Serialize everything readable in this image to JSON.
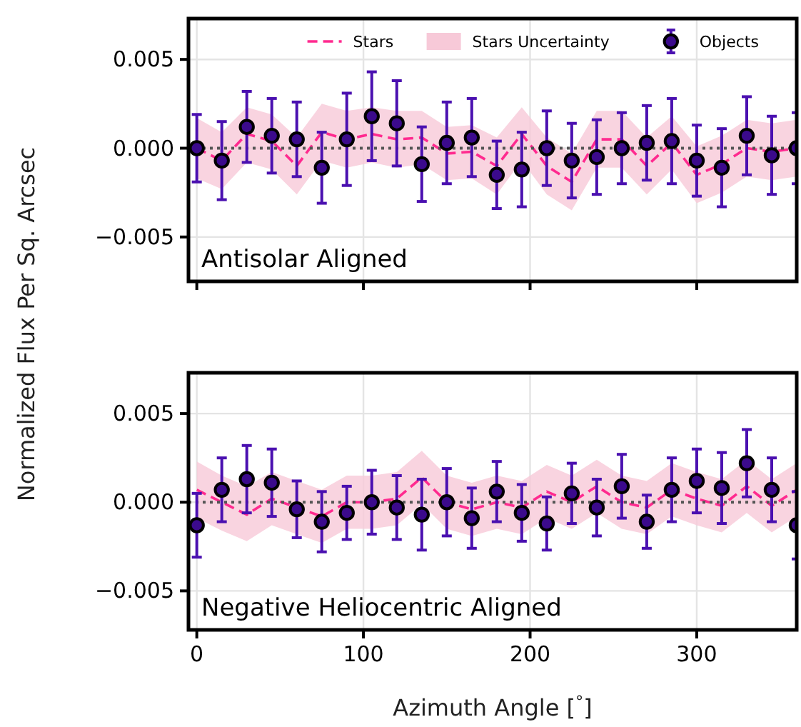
{
  "chart_data": [
    {
      "type": "scatter",
      "ylabel": "Normalized Flux Per Sq. Arcsec",
      "annotations": [
        "Antisolar Aligned",
        "Stars Uncertainty"
      ],
      "x": [
        0,
        15,
        30,
        45,
        60,
        75,
        90,
        105,
        120,
        135,
        150,
        165,
        180,
        195,
        210,
        225,
        240,
        255,
        270,
        285,
        300,
        315,
        330,
        345,
        360
      ],
      "xlim": [
        -5,
        360
      ],
      "xticks": [
        0,
        100,
        200,
        300
      ],
      "ylim": [
        -0.0075,
        0.0073
      ],
      "yticks": [
        {
          "value": -0.005,
          "label": "−0.005"
        },
        {
          "value": 0,
          "label": "0.000"
        },
        {
          "value": 0.005,
          "label": "0.005"
        }
      ],
      "grid": true,
      "legend": "top right",
      "tick_labels": "y",
      "ref_lines": [
        {
          "axis": "y",
          "value": 0,
          "color": "#555555",
          "line_style": "dotted"
        }
      ],
      "series": [
        {
          "name": "Stars",
          "type": "line",
          "color": "#ff2a8f",
          "line_style": "dashed",
          "marker": "none",
          "values": [
            0,
            -0.0007,
            0.0008,
            0.0004,
            -0.001,
            0.0009,
            0.0005,
            0.0008,
            0.0005,
            0.0006,
            -0.0003,
            -0.0002,
            -0.001,
            0.0008,
            -0.001,
            -0.0019,
            0.0005,
            0.0005,
            -0.001,
            0.0003,
            -0.0015,
            -0.0009,
            0,
            -0.0002,
            0
          ],
          "lower": [
            -0.0017,
            -0.0023,
            -0.0008,
            -0.0012,
            -0.0026,
            -0.0007,
            -0.0011,
            -0.0008,
            -0.0011,
            -0.0009,
            -0.0018,
            -0.0017,
            -0.0026,
            -0.0007,
            -0.0026,
            -0.0035,
            -0.0011,
            -0.0011,
            -0.0026,
            -0.0012,
            -0.0031,
            -0.0025,
            -0.0016,
            -0.0018,
            -0.0016
          ],
          "upper": [
            0.0017,
            0.0009,
            0.0023,
            0.0019,
            0.0006,
            0.0025,
            0.0021,
            0.0023,
            0.0021,
            0.0021,
            0.0012,
            0.0013,
            0.0006,
            0.0023,
            0.0006,
            -0.0003,
            0.0021,
            0.0021,
            0.0006,
            0.0018,
            0.0001,
            0.0007,
            0.0016,
            0.0014,
            0.0016
          ]
        },
        {
          "name": "Objects",
          "color": "#3b0a8c",
          "marker": "circle",
          "values": [
            0,
            -0.0007,
            0.0012,
            0.0007,
            0.0005,
            -0.0011,
            0.0005,
            0.0018,
            0.0014,
            -0.0009,
            0.0003,
            0.0006,
            -0.0015,
            -0.0012,
            0,
            -0.0007,
            -0.0005,
            0,
            0.0003,
            0.0004,
            -0.0007,
            -0.0011,
            0.0007,
            -0.0004,
            0
          ],
          "errors": [
            0.0019,
            0.0022,
            0.002,
            0.0021,
            0.0021,
            0.002,
            0.0026,
            0.0025,
            0.0024,
            0.0021,
            0.0023,
            0.0022,
            0.0019,
            0.0021,
            0.0021,
            0.0021,
            0.0021,
            0.002,
            0.0021,
            0.0024,
            0.002,
            0.0022,
            0.0022,
            0.0022,
            0.002
          ]
        }
      ]
    },
    {
      "type": "scatter",
      "xlabel": "Azimuth Angle [$^{°}$]",
      "annotations": [
        "Negative Heliocentric Aligned"
      ],
      "x": [
        0,
        15,
        30,
        45,
        60,
        75,
        90,
        105,
        120,
        135,
        150,
        165,
        180,
        195,
        210,
        225,
        240,
        255,
        270,
        285,
        300,
        315,
        330,
        345,
        360
      ],
      "xlim": [
        -5,
        360
      ],
      "xticks": [
        0,
        100,
        200,
        300
      ],
      "ylim": [
        -0.0072,
        0.0073
      ],
      "yticks": [
        {
          "value": -0.005,
          "label": "−0.005"
        },
        {
          "value": 0,
          "label": "0.000"
        },
        {
          "value": 0.005,
          "label": "0.005"
        }
      ],
      "grid": true,
      "ref_lines": [
        {
          "axis": "y",
          "value": 0,
          "color": "#555555",
          "line_style": "dotted"
        }
      ],
      "series": [
        {
          "type": "line",
          "color": "#ff2a8f",
          "line_style": "dashed",
          "marker": "none",
          "values": [
            0.0007,
            0,
            -0.0007,
            0.0002,
            -0.0003,
            -0.0008,
            0,
            0,
            0.0002,
            0.0014,
            0,
            -0.0004,
            0,
            -0.0003,
            0.0006,
            0,
            0.0009,
            0,
            -0.0003,
            0.0007,
            0.0002,
            -0.0002,
            0.0009,
            -0.0002,
            0.0007
          ],
          "lower": [
            -0.0009,
            -0.0016,
            -0.0022,
            -0.0013,
            -0.0018,
            -0.0023,
            -0.0015,
            -0.0015,
            -0.0013,
            -0.0001,
            -0.0015,
            -0.0019,
            -0.0015,
            -0.0018,
            -0.0009,
            -0.0015,
            -0.0006,
            -0.0015,
            -0.0018,
            -0.0008,
            -0.0013,
            -0.0017,
            -0.0006,
            -0.0017,
            -0.0008
          ],
          "upper": [
            0.0023,
            0.0015,
            0.0009,
            0.0017,
            0.0012,
            0.0007,
            0.0015,
            0.0015,
            0.0017,
            0.0029,
            0.0015,
            0.0011,
            0.0015,
            0.0012,
            0.0021,
            0.0015,
            0.0024,
            0.0015,
            0.0012,
            0.0022,
            0.0017,
            0.0013,
            0.0024,
            0.0013,
            0.0022
          ]
        },
        {
          "color": "#3b0a8c",
          "marker": "circle",
          "values": [
            -0.0013,
            0.0007,
            0.0013,
            0.0011,
            -0.0004,
            -0.0011,
            -0.0006,
            0,
            -0.0003,
            -0.0007,
            0,
            -0.0009,
            0.0006,
            -0.0006,
            -0.0012,
            0.0005,
            -0.0003,
            0.0009,
            -0.0011,
            0.0007,
            0.0012,
            0.0008,
            0.0022,
            0.0007,
            -0.0013
          ],
          "errors": [
            0.0018,
            0.0018,
            0.0019,
            0.0019,
            0.0016,
            0.0017,
            0.0015,
            0.0018,
            0.0018,
            0.002,
            0.0019,
            0.0017,
            0.0017,
            0.0016,
            0.0015,
            0.0017,
            0.0016,
            0.0018,
            0.0015,
            0.0018,
            0.0018,
            0.002,
            0.0019,
            0.0018,
            0.0019
          ]
        }
      ]
    }
  ]
}
